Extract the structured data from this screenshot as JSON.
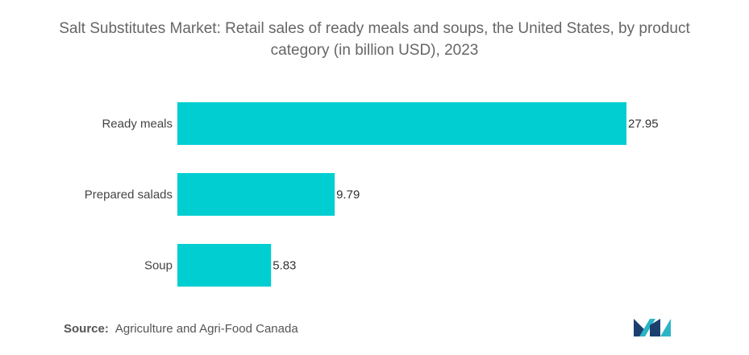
{
  "chart_data": {
    "type": "bar",
    "orientation": "horizontal",
    "title": "Salt Substitutes Market: Retail sales of ready meals and soups, the United States, by product category (in billion USD), 2023",
    "categories": [
      "Ready meals",
      "Prepared salads",
      "Soup"
    ],
    "values": [
      27.95,
      9.79,
      5.83
    ],
    "value_labels": [
      "27.95",
      "9.79",
      "5.83"
    ],
    "xlabel": "",
    "ylabel": "",
    "grid": false,
    "legend": "none",
    "bar_color": "#00CED1"
  },
  "source": {
    "label": "Source:",
    "text": "Agriculture and Agri-Food Canada"
  },
  "logo": {
    "icon": "mordor-intelligence-logo-icon",
    "colors": [
      "#1C3F6E",
      "#2BB5C4"
    ]
  }
}
